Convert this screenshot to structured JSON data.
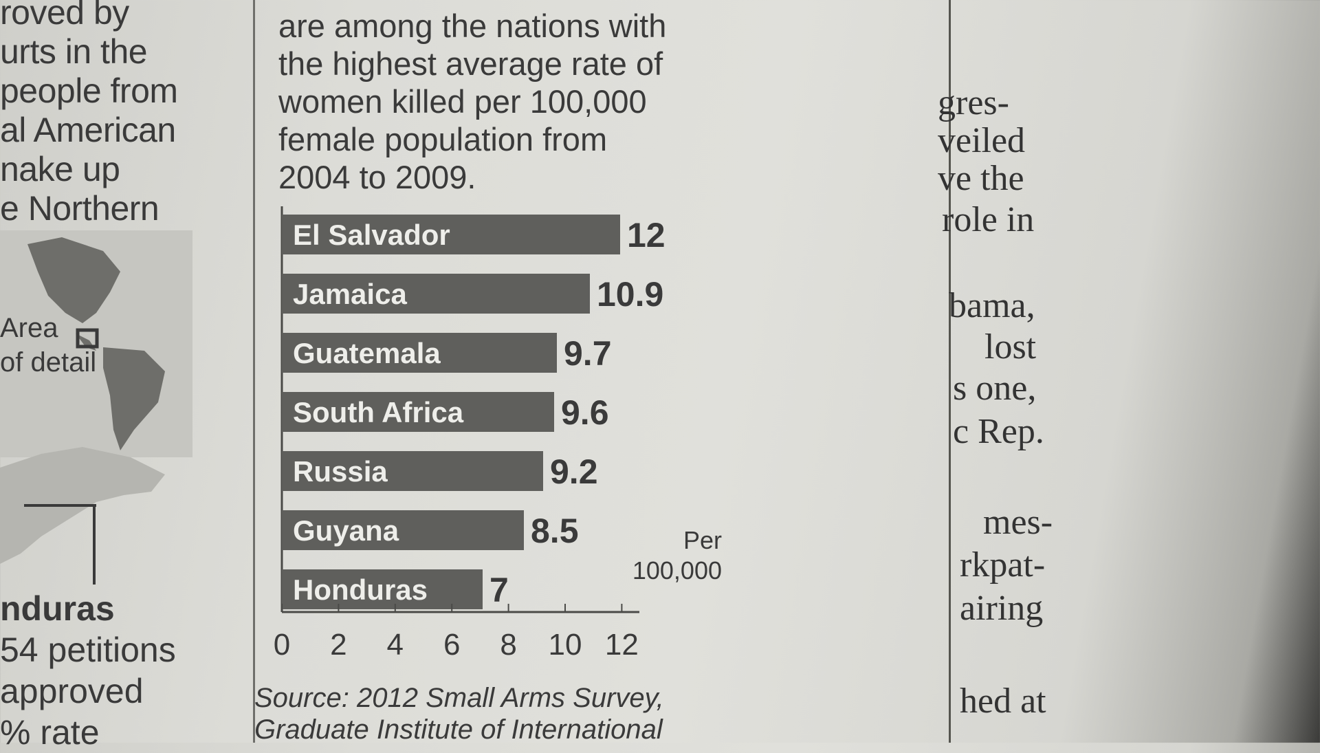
{
  "left_column": {
    "lines": [
      "roved by",
      "urts in the",
      "people from",
      "al American",
      "nake up",
      "e Northern"
    ],
    "map_labels": [
      "Area",
      "of detail"
    ],
    "bottom_lines": [
      "nduras",
      "54 petitions",
      "approved",
      "% rate"
    ]
  },
  "intro": {
    "lines": [
      "are among the nations with",
      "the highest average rate of",
      "women killed per 100,000",
      "female population from",
      "2004 to 2009."
    ]
  },
  "chart_data": {
    "type": "bar",
    "orientation": "horizontal",
    "categories": [
      "El Salvador",
      "Jamaica",
      "Guatemala",
      "South Africa",
      "Russia",
      "Guyana",
      "Honduras"
    ],
    "values": [
      12,
      10.9,
      9.7,
      9.6,
      9.2,
      8.5,
      7
    ],
    "value_labels": [
      "12",
      "10.9",
      "9.7",
      "9.6",
      "9.2",
      "8.5",
      "7"
    ],
    "xticks": [
      "0",
      "2",
      "4",
      "6",
      "8",
      "10",
      "12"
    ],
    "xlim": [
      0,
      12
    ],
    "unit_label": [
      "Per",
      "100,000"
    ],
    "bar_color": "#5f5f5c",
    "grid": false
  },
  "source": {
    "lines": [
      "Source: 2012 Small Arms Survey,",
      "Graduate Institute of International"
    ]
  },
  "right_column": {
    "lines": [
      "gres-",
      "veiled",
      "ve the",
      "role in",
      "bama,",
      "lost",
      "s one,",
      "c Rep.",
      "mes-",
      "rkpat-",
      "airing",
      "hed  at"
    ]
  }
}
